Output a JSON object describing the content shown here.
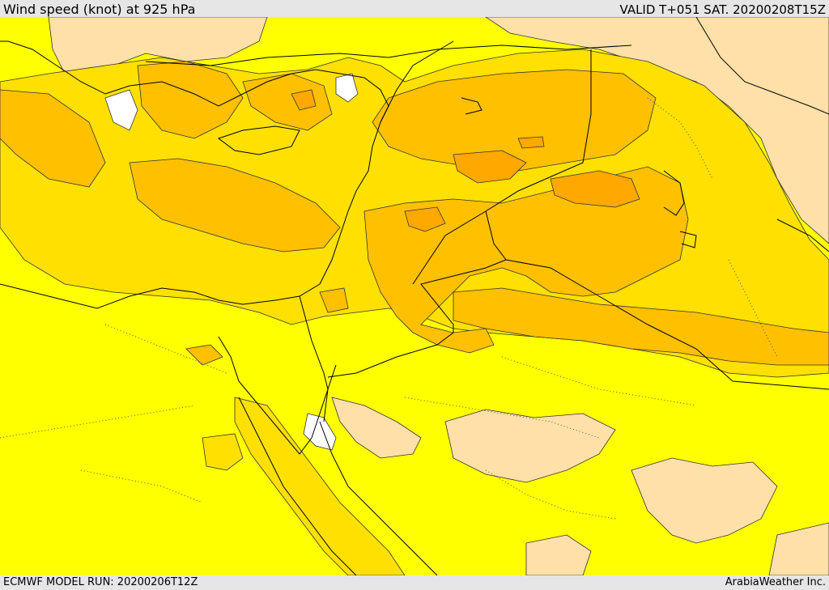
{
  "header": {
    "title": "Wind speed (knot) at 925 hPa",
    "valid": "VALID T+051 SAT. 20200208T15Z"
  },
  "footer": {
    "model_run": "ECMWF MODEL RUN: 20200206T12Z",
    "credit": "ArabiaWeather Inc."
  },
  "map": {
    "region": "Eastern Mediterranean and Middle East",
    "variable": "wind speed",
    "level_hpa": 925,
    "unit": "knot",
    "colors": {
      "calm": "#ffffff",
      "light": "#ffe0a8",
      "yellow": "#ffff00",
      "gold": "#ffe000",
      "orange_light": "#ffc000",
      "orange": "#ffa800",
      "orange_dark": "#ff9000",
      "outline": "#000000"
    }
  }
}
